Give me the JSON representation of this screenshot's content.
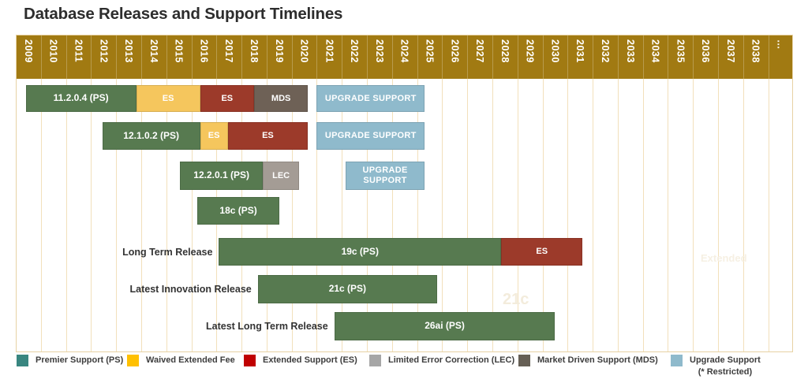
{
  "title": "Database Releases and Support Timelines",
  "axis": {
    "years": [
      "2009",
      "2010",
      "2011",
      "2012",
      "2013",
      "2014",
      "2015",
      "2016",
      "2017",
      "2018",
      "2019",
      "2020",
      "2021",
      "2022",
      "2023",
      "2024",
      "2025",
      "2026",
      "2027",
      "2028",
      "2029",
      "2030",
      "2031",
      "2032",
      "2033",
      "2034",
      "2035",
      "2036",
      "2037",
      "2038"
    ],
    "overflow_label": "…"
  },
  "chart_data": {
    "type": "gantt",
    "title": "Database Releases and Support Timelines",
    "x_axis": {
      "unit": "year",
      "min": 2009,
      "max": 2039,
      "gridlines": true,
      "note": "values approximate, read from chart pixels"
    },
    "rows": [
      {
        "id": "11.2.0.4",
        "row_label": "",
        "segments": [
          {
            "type": "premier",
            "label": "11.2.0.4 (PS)",
            "start": 2009.4,
            "end": 2013.8
          },
          {
            "type": "waived",
            "label": "ES",
            "start": 2013.8,
            "end": 2016.35
          },
          {
            "type": "extended",
            "label": "ES",
            "start": 2016.35,
            "end": 2018.5
          },
          {
            "type": "mds",
            "label": "MDS",
            "start": 2018.5,
            "end": 2020.65
          },
          {
            "type": "upgrade",
            "label": "UPGRADE SUPPORT",
            "start": 2021.0,
            "end": 2025.3
          }
        ]
      },
      {
        "id": "12.1.0.2",
        "row_label": "",
        "segments": [
          {
            "type": "premier",
            "label": "12.1.0.2 (PS)",
            "start": 2012.45,
            "end": 2016.35
          },
          {
            "type": "waived",
            "label": "ES",
            "start": 2016.35,
            "end": 2017.45
          },
          {
            "type": "extended",
            "label": "ES",
            "start": 2017.45,
            "end": 2020.65
          },
          {
            "type": "upgrade",
            "label": "UPGRADE SUPPORT",
            "start": 2021.0,
            "end": 2025.3
          }
        ]
      },
      {
        "id": "12.2.0.1",
        "row_label": "",
        "segments": [
          {
            "type": "premier",
            "label": "12.2.0.1 (PS)",
            "start": 2015.55,
            "end": 2018.85
          },
          {
            "type": "lec",
            "label": "LEC",
            "start": 2018.85,
            "end": 2020.3
          },
          {
            "type": "upgrade",
            "label": "UPGRADE SUPPORT",
            "start": 2022.15,
            "end": 2025.3
          }
        ]
      },
      {
        "id": "18c",
        "row_label": "",
        "segments": [
          {
            "type": "premier",
            "label": "18c (PS)",
            "start": 2016.25,
            "end": 2019.5
          }
        ]
      },
      {
        "id": "19c",
        "row_label": "Long Term Release",
        "segments": [
          {
            "type": "premier",
            "label": "19c (PS)",
            "start": 2017.1,
            "end": 2028.35
          },
          {
            "type": "extended",
            "label": "ES",
            "start": 2028.35,
            "end": 2031.6
          }
        ]
      },
      {
        "id": "21c",
        "row_label": "Latest Innovation Release",
        "segments": [
          {
            "type": "premier",
            "label": "21c (PS)",
            "start": 2018.65,
            "end": 2025.8
          }
        ]
      },
      {
        "id": "26ai",
        "row_label": "Latest Long Term Release",
        "segments": [
          {
            "type": "premier",
            "label": "26ai (PS)",
            "start": 2021.7,
            "end": 2030.5
          }
        ]
      }
    ]
  },
  "legend": {
    "items": [
      {
        "key": "premier",
        "swatch_color": "#398680",
        "lines": [
          "Premier Support (PS)"
        ]
      },
      {
        "key": "waived",
        "swatch_color": "#FFC000",
        "lines": [
          "Waived Extended Fee"
        ]
      },
      {
        "key": "extended",
        "swatch_color": "#C00000",
        "lines": [
          "Extended Support (ES)"
        ]
      },
      {
        "key": "lec",
        "swatch_color": "#A6A6A6",
        "lines": [
          "Limited Error Correction (LEC)"
        ]
      },
      {
        "key": "mds",
        "swatch_color": "#665F55",
        "lines": [
          "Market Driven Support (MDS)"
        ]
      },
      {
        "key": "upgrade",
        "swatch_color": "#8FBACC",
        "lines": [
          "Upgrade Support",
          "(* Restricted)"
        ]
      }
    ]
  },
  "colors": {
    "header_band": "#A17A12",
    "grid_line": "#F2E0BB",
    "frame": "#E7D2A4",
    "bar_premier": "#577A50",
    "bar_waived": "#F5C65D",
    "bar_extended": "#9C3A2A",
    "bar_mds": "#6E6156",
    "bar_lec": "#A49C95",
    "bar_upgrade": "#8FBACC",
    "year_label": "#FFFFFF",
    "title_text": "#2D2D2D"
  },
  "ghost_artifacts": [
    {
      "text": "21c"
    },
    {
      "text": "Extended"
    }
  ]
}
